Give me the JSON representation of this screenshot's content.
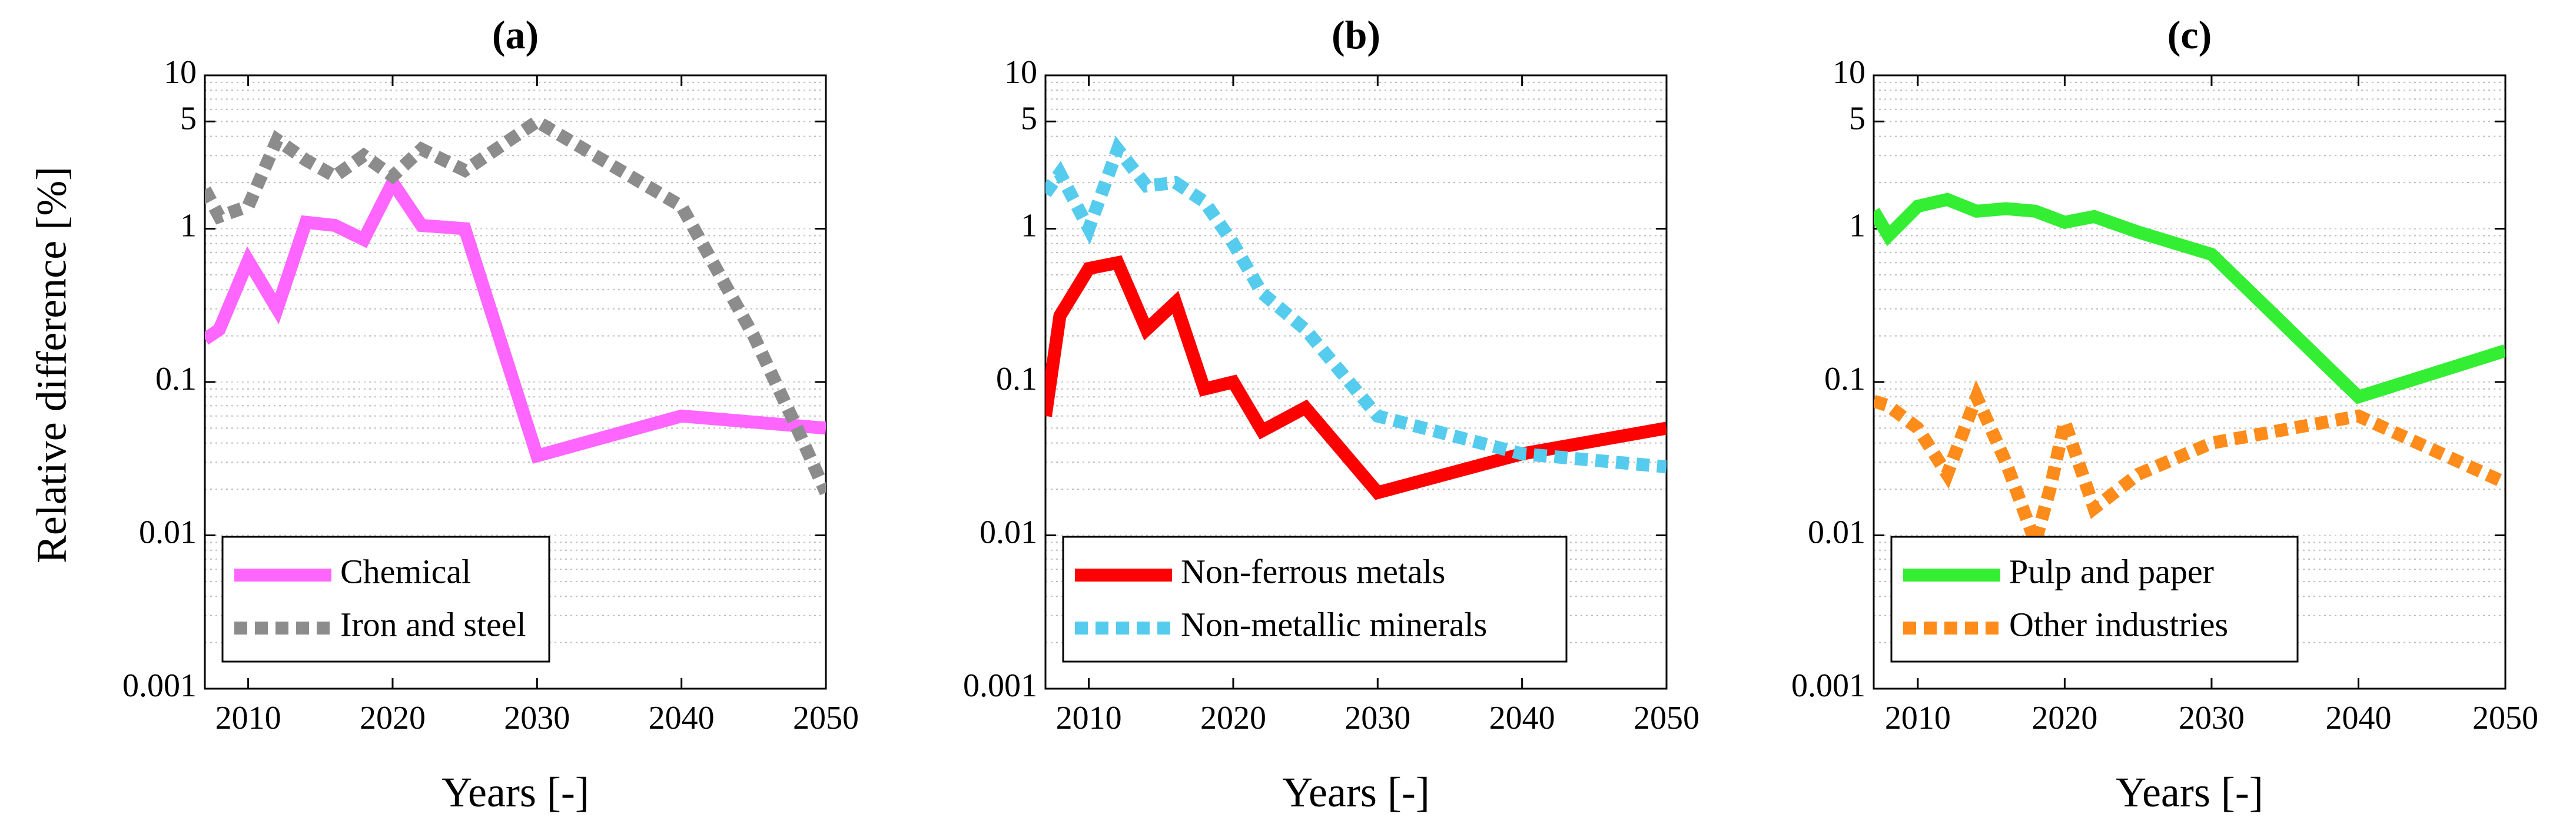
{
  "figure": {
    "ylabel": "Relative difference [%]"
  },
  "chart_data": [
    {
      "type": "line",
      "title": "(a)",
      "xlabel": "Years [-]",
      "ylabel": "Relative difference [%]",
      "yscale": "log",
      "xlim": [
        2007,
        2050
      ],
      "ylim": [
        0.001,
        10
      ],
      "xticks": [
        "2010",
        "2020",
        "2030",
        "2040",
        "2050"
      ],
      "yticks": [
        "0.001",
        "0.01",
        "0.1",
        "1",
        "5",
        "10"
      ],
      "legend_position": "bottom-left",
      "series": [
        {
          "name": "Chemical",
          "color": "#ff66ff",
          "style": "solid",
          "x": [
            2007,
            2008,
            2010,
            2012,
            2014,
            2016,
            2018,
            2020,
            2022,
            2025,
            2030,
            2040,
            2050
          ],
          "y": [
            0.19,
            0.22,
            0.62,
            0.3,
            1.1,
            1.05,
            0.85,
            2.0,
            1.05,
            1.0,
            0.033,
            0.06,
            0.05
          ]
        },
        {
          "name": "Iron and steel",
          "color": "#8c8c8c",
          "style": "dotted",
          "x": [
            2007,
            2008,
            2010,
            2012,
            2014,
            2016,
            2018,
            2020,
            2022,
            2025,
            2030,
            2040,
            2045,
            2048,
            2050
          ],
          "y": [
            1.8,
            1.2,
            1.4,
            3.8,
            2.8,
            2.2,
            3.0,
            2.2,
            3.3,
            2.4,
            5.0,
            1.4,
            0.2,
            0.05,
            0.019
          ]
        }
      ]
    },
    {
      "type": "line",
      "title": "(b)",
      "xlabel": "Years [-]",
      "yscale": "log",
      "xlim": [
        2007,
        2050
      ],
      "ylim": [
        0.001,
        10
      ],
      "xticks": [
        "2010",
        "2020",
        "2030",
        "2040",
        "2050"
      ],
      "yticks": [
        "0.001",
        "0.01",
        "0.1",
        "1",
        "5",
        "10"
      ],
      "legend_position": "bottom-left",
      "series": [
        {
          "name": "Non-ferrous metals",
          "color": "#ff0000",
          "style": "solid",
          "x": [
            2007,
            2008,
            2010,
            2012,
            2014,
            2016,
            2018,
            2020,
            2022,
            2025,
            2030,
            2040,
            2050
          ],
          "y": [
            0.06,
            0.27,
            0.55,
            0.6,
            0.22,
            0.33,
            0.09,
            0.1,
            0.048,
            0.068,
            0.019,
            0.034,
            0.05
          ]
        },
        {
          "name": "Non-metallic minerals",
          "color": "#55ccee",
          "style": "dotted",
          "x": [
            2007,
            2008,
            2010,
            2012,
            2014,
            2016,
            2018,
            2020,
            2022,
            2025,
            2030,
            2040,
            2050
          ],
          "y": [
            1.7,
            2.3,
            1.0,
            3.3,
            1.9,
            2.0,
            1.5,
            0.8,
            0.38,
            0.22,
            0.06,
            0.034,
            0.028
          ]
        }
      ]
    },
    {
      "type": "line",
      "title": "(c)",
      "xlabel": "Years [-]",
      "yscale": "log",
      "xlim": [
        2007,
        2050
      ],
      "ylim": [
        0.001,
        10
      ],
      "xticks": [
        "2010",
        "2020",
        "2030",
        "2040",
        "2050"
      ],
      "yticks": [
        "0.001",
        "0.01",
        "0.1",
        "1",
        "5",
        "10"
      ],
      "legend_position": "bottom-left",
      "series": [
        {
          "name": "Pulp and paper",
          "color": "#33ee33",
          "style": "solid",
          "x": [
            2007,
            2008,
            2010,
            2012,
            2014,
            2016,
            2018,
            2020,
            2022,
            2025,
            2030,
            2040,
            2050
          ],
          "y": [
            1.3,
            0.9,
            1.4,
            1.55,
            1.3,
            1.35,
            1.3,
            1.1,
            1.2,
            0.95,
            0.68,
            0.08,
            0.16
          ]
        },
        {
          "name": "Other industries",
          "color": "#ff8c1a",
          "style": "dotted",
          "x": [
            2007,
            2008,
            2010,
            2012,
            2014,
            2016,
            2018,
            2019,
            2020,
            2022,
            2025,
            2030,
            2040,
            2050
          ],
          "y": [
            0.075,
            0.07,
            0.05,
            0.025,
            0.08,
            0.03,
            0.009,
            0.02,
            0.055,
            0.015,
            0.025,
            0.04,
            0.06,
            0.022
          ]
        }
      ]
    }
  ]
}
